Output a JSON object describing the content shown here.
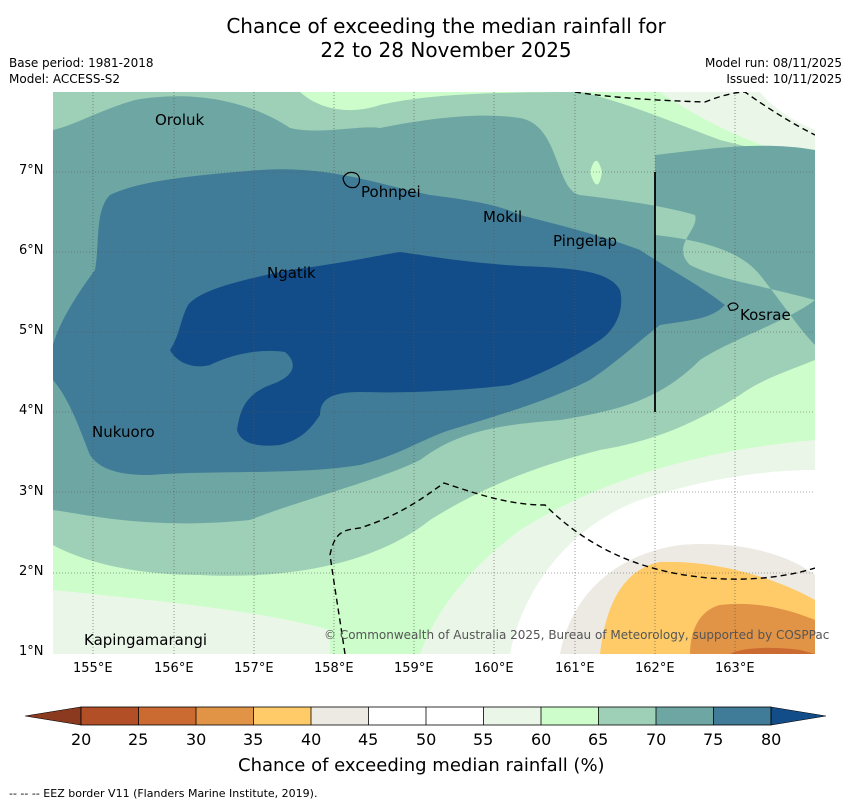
{
  "title_line1": "Chance of exceeding the median rainfall for",
  "title_line2": "22 to 28 November 2025",
  "base_period": "Base period: 1981-2018",
  "model": "Model: ACCESS-S2",
  "model_run": "Model run: 08/11/2025",
  "issued": "Issued: 10/11/2025",
  "credit": "© Commonwealth of Australia 2025, Bureau of Meteorology, supported by COSPPac",
  "places": {
    "oroluk": "Oroluk",
    "pohnpei": "Pohnpei",
    "mokil": "Mokil",
    "pingelap": "Pingelap",
    "ngatik": "Ngatik",
    "kosrae": "Kosrae",
    "nukuoro": "Nukuoro",
    "kapingamarangi": "Kapingamarangi"
  },
  "lat_ticks": [
    "7°N",
    "6°N",
    "5°N",
    "4°N",
    "3°N",
    "2°N",
    "1°N"
  ],
  "lon_ticks": [
    "155°E",
    "156°E",
    "157°E",
    "158°E",
    "159°E",
    "160°E",
    "161°E",
    "162°E",
    "163°E"
  ],
  "colorbar": {
    "ticks": [
      "20",
      "25",
      "30",
      "35",
      "40",
      "45",
      "50",
      "55",
      "60",
      "65",
      "70",
      "75",
      "80"
    ],
    "colors": {
      "below20": "#8c3a1f",
      "c20_25": "#b24f27",
      "c25_30": "#cb6a31",
      "c30_35": "#e19346",
      "c35_40": "#fecb68",
      "c40_45": "#edeae4",
      "c45_50": "#ffffff",
      "c50_55": "#ffffff",
      "c55_60": "#eaf7e8",
      "c60_65": "#ccfdca",
      "c65_70": "#9dd0b6",
      "c70_75": "#6ea6a3",
      "c75_80": "#407c98",
      "above80": "#134d89"
    },
    "label": "Chance of exceeding median rainfall (%)"
  },
  "footer": "--  --  -- EEZ border V11 (Flanders Marine Institute, 2019)."
}
